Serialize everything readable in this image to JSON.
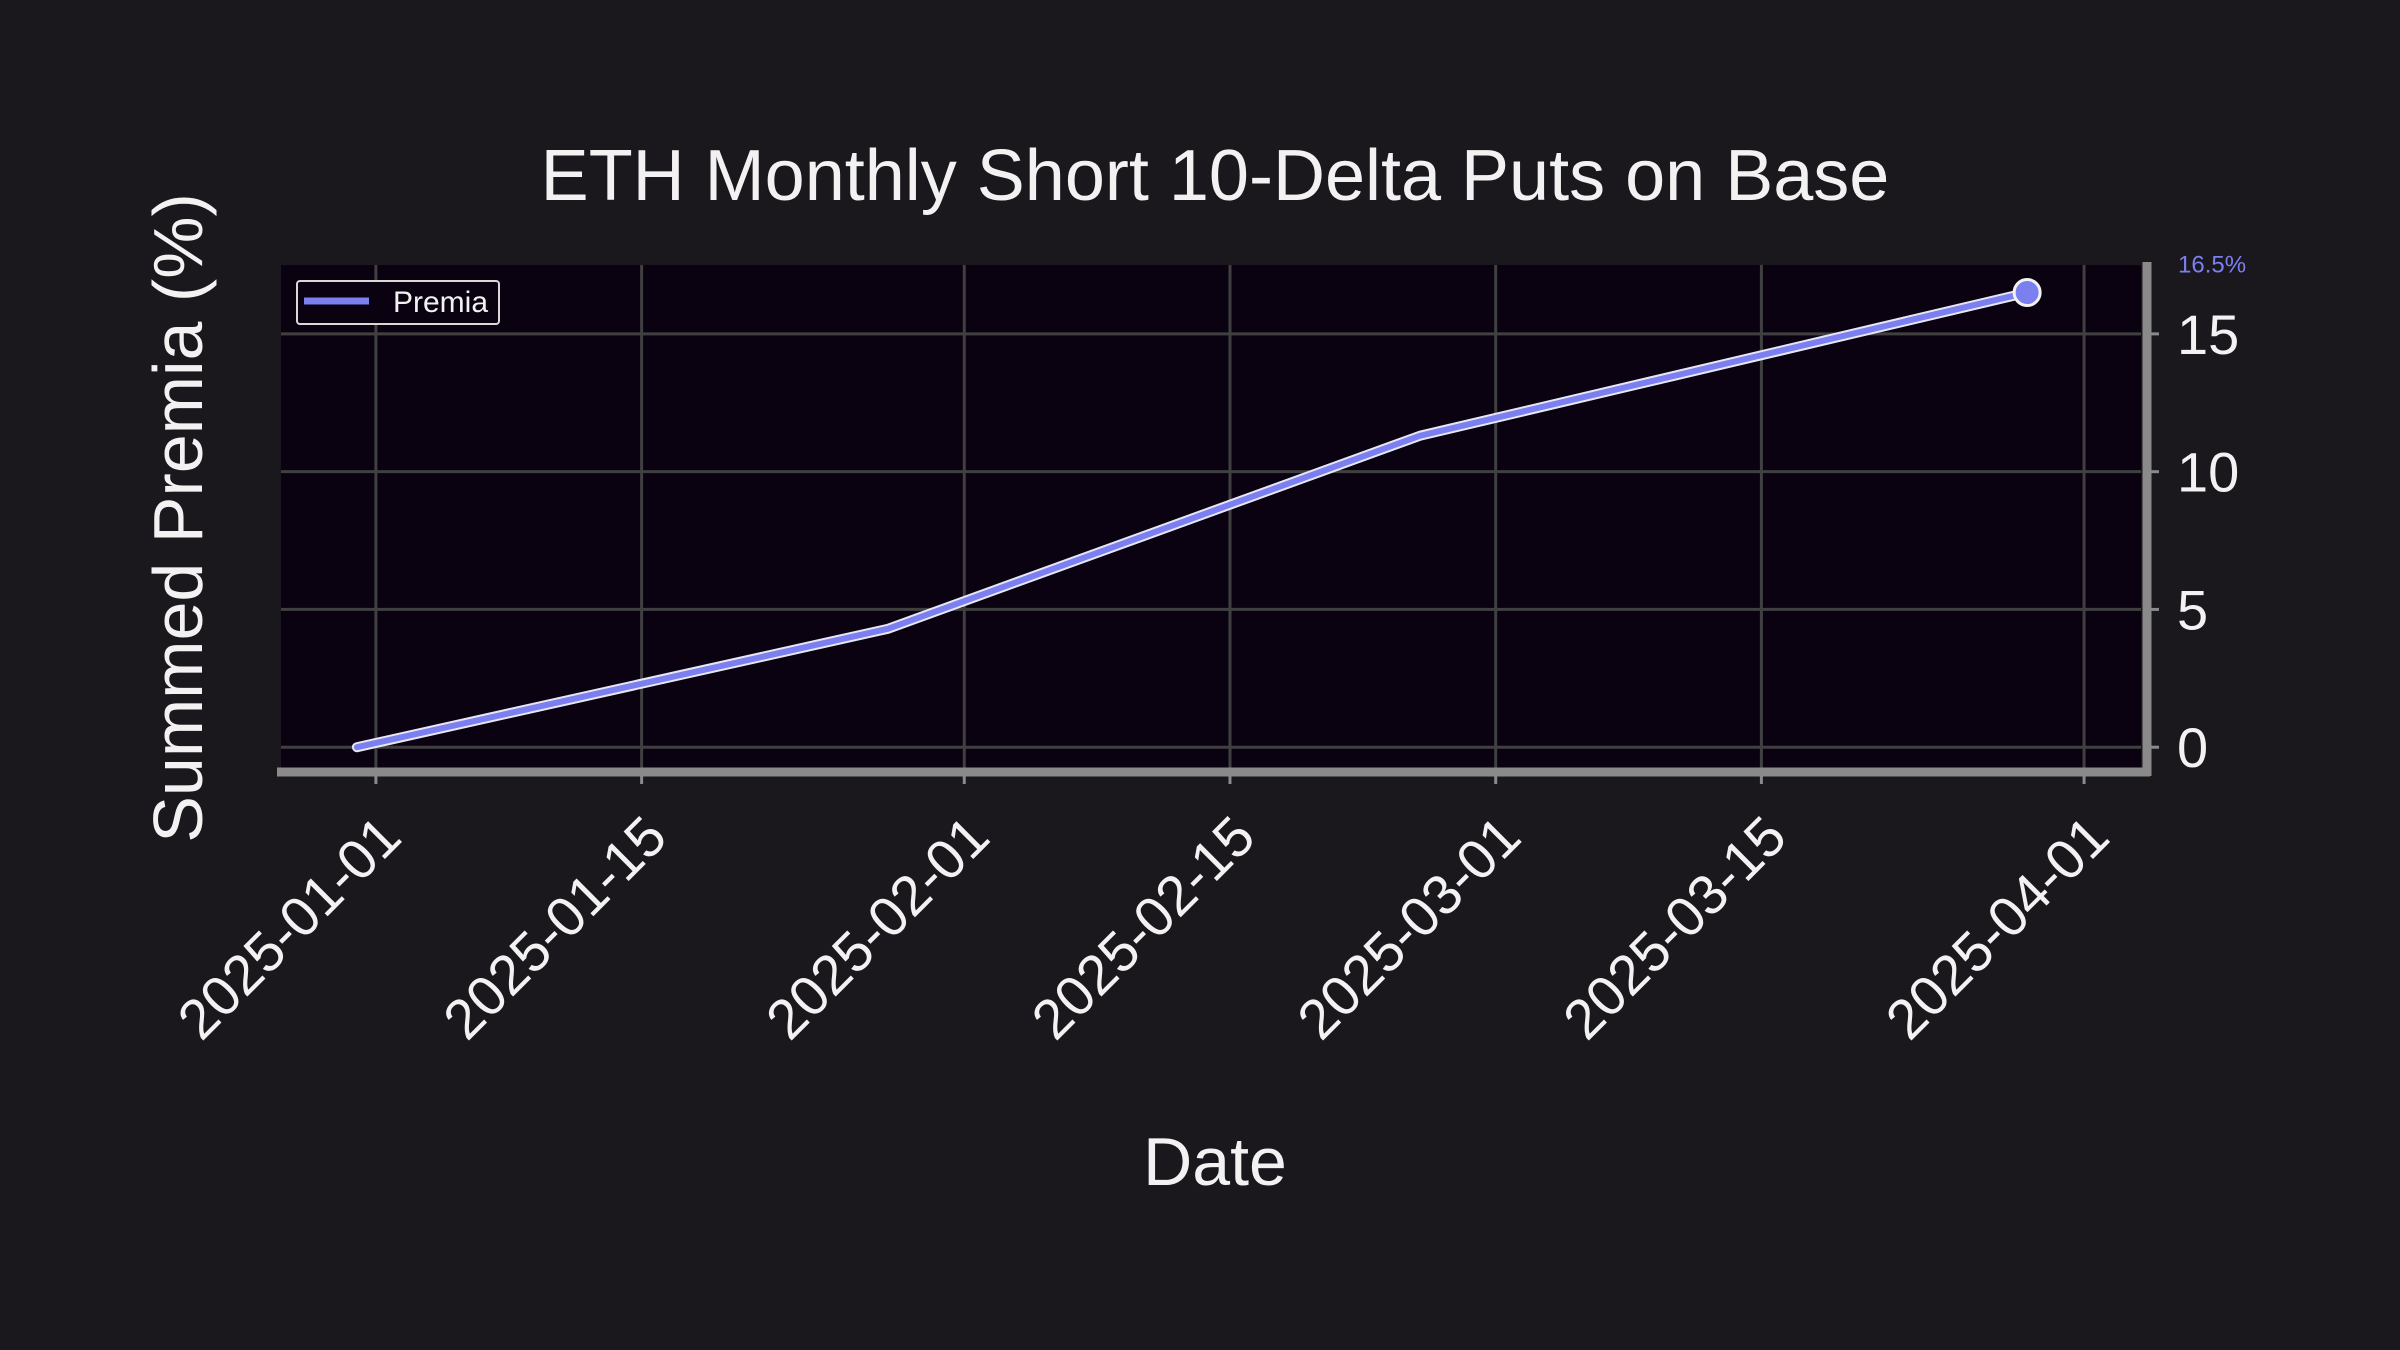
{
  "chart_data": {
    "type": "line",
    "title": "ETH Monthly Short 10-Delta Puts on Base",
    "xlabel": "Date",
    "ylabel": "Summed Premia (%)",
    "x_tick_labels": [
      "2025-01-01",
      "2025-01-15",
      "2025-02-01",
      "2025-02-15",
      "2025-03-01",
      "2025-03-15",
      "2025-04-01"
    ],
    "y_ticks": [
      0,
      5,
      10,
      15
    ],
    "xlim": [
      "2024-12-27",
      "2025-04-04"
    ],
    "ylim": [
      -0.9,
      17.5
    ],
    "grid": true,
    "y_axis_side": "right",
    "legend": {
      "position": "top-left",
      "entries": [
        "Premia"
      ]
    },
    "series": [
      {
        "name": "Premia",
        "color": "#7b7ff0",
        "x": [
          "2024-12-31",
          "2025-01-28",
          "2025-02-25",
          "2025-03-29"
        ],
        "y": [
          0.0,
          4.3,
          11.3,
          16.5
        ]
      }
    ],
    "end_annotation": "16.5%"
  },
  "colors": {
    "background": "#1a181d",
    "plot_background": "#0a0211",
    "grid": "#404040",
    "spine": "#8a8a8a",
    "text": "#f2f2f2",
    "line": "#7b7ff0",
    "annotation": "#7b7ff0"
  }
}
